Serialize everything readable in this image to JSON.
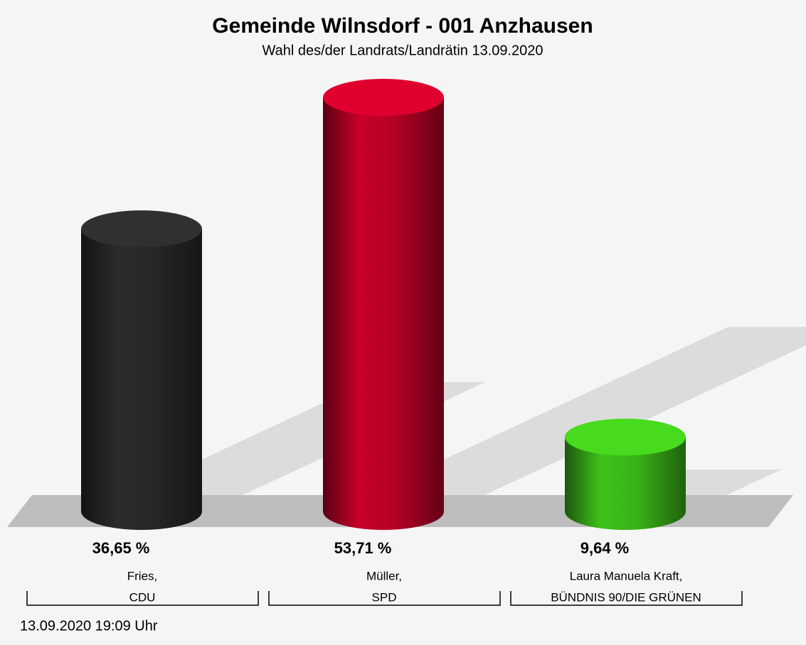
{
  "chart_data": {
    "type": "bar",
    "title": "Gemeinde Wilnsdorf - 001  Anzhausen",
    "subtitle": "Wahl des/der Landrats/Landrätin 13.09.2020",
    "categories": [
      [
        "Fries,",
        "CDU"
      ],
      [
        "Müller,",
        "SPD"
      ],
      [
        "Laura Manuela Kraft,",
        "BÜNDNIS 90/DIE GRÜNEN"
      ]
    ],
    "values": [
      36.65,
      53.71,
      9.64
    ],
    "value_labels": [
      "36,65 %",
      "53,71 %",
      "9,64 %"
    ],
    "colors": [
      "#2b2b2b",
      "#c8002a",
      "#3fc31a"
    ],
    "footer": "13.09.2020 19:09 Uhr"
  }
}
